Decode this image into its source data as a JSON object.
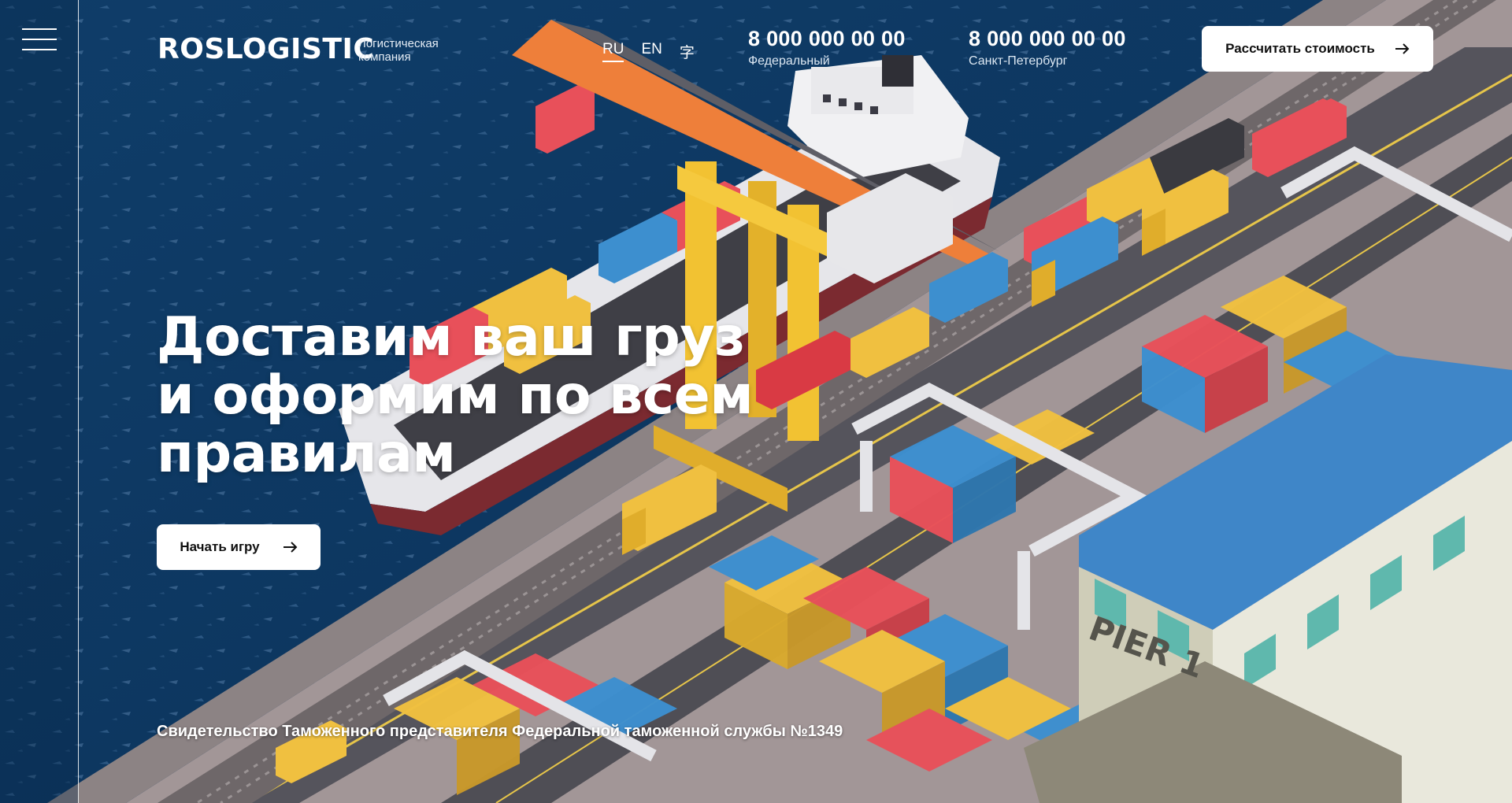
{
  "header": {
    "logo": "ROSLOGISTIC",
    "logo_sub_1": "Логистическая",
    "logo_sub_2": "компания",
    "languages": [
      "RU",
      "EN",
      "字"
    ],
    "phones": [
      {
        "number": "8 000 000 00 00",
        "label": "Федеральный"
      },
      {
        "number": "8 000 000 00 00",
        "label": "Санкт-Петербург"
      }
    ],
    "cta_label": "Рассчитать стоимость"
  },
  "hero": {
    "title_lines": [
      "Доставим ваш груз",
      "и оформим по всем",
      "правилам"
    ],
    "button_label": "Начать игру"
  },
  "footer": {
    "certificate": "Свидетельство Таможенного представителя Федеральной таможенной службы №1349"
  },
  "scene": {
    "pier_label": "PIER 1"
  },
  "colors": {
    "water": "#0e3a66",
    "pier": "#9a8f8f",
    "road": "#4a4a52",
    "crane": "#f2c232",
    "container_red": "#e8505a",
    "container_blue": "#3d8fcf",
    "container_yellow": "#f0c040",
    "warehouse_roof": "#3f86c8"
  }
}
